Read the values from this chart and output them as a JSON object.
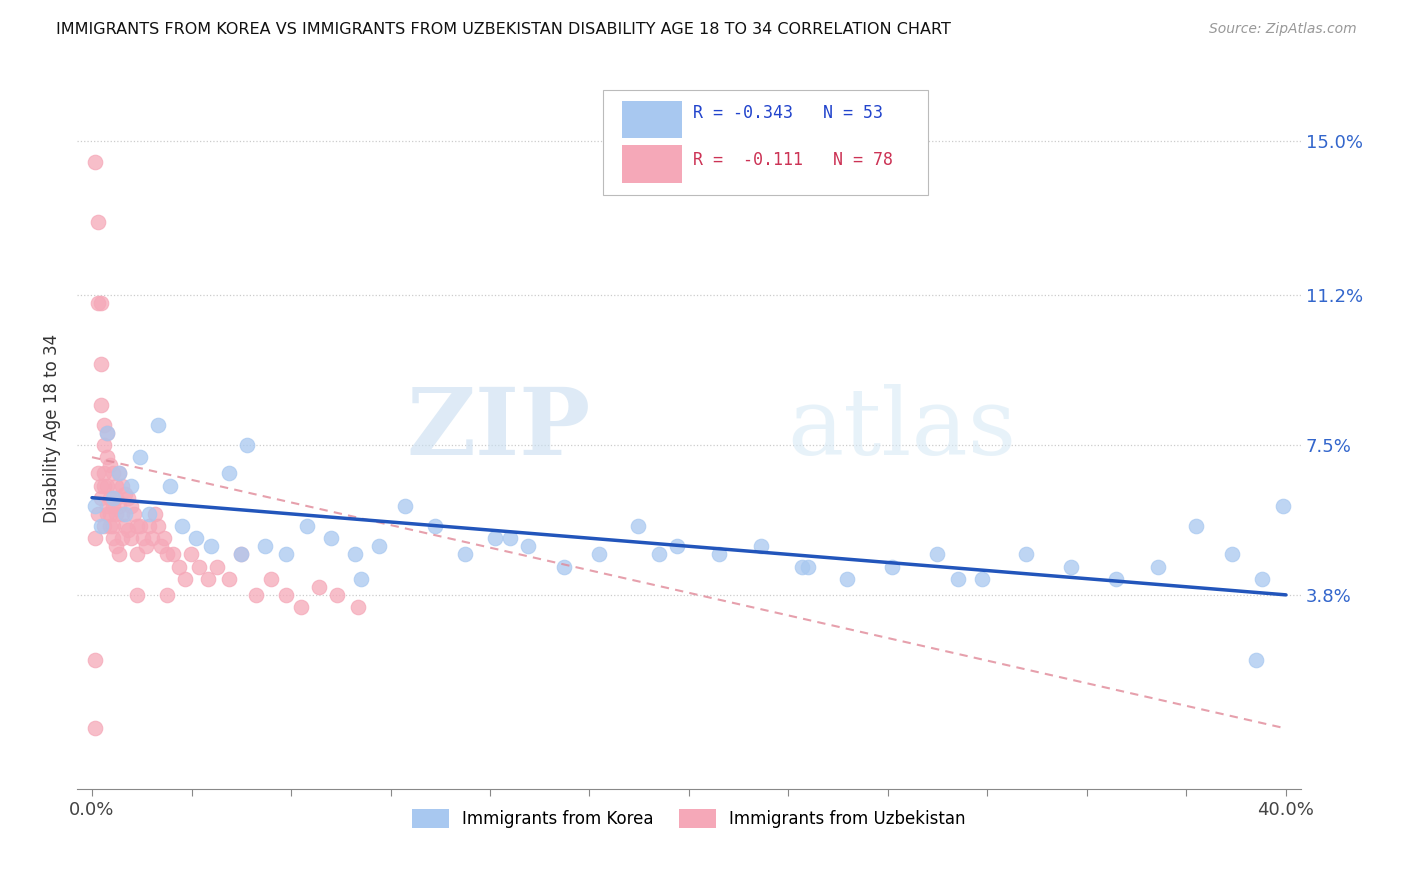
{
  "title": "IMMIGRANTS FROM KOREA VS IMMIGRANTS FROM UZBEKISTAN DISABILITY AGE 18 TO 34 CORRELATION CHART",
  "source": "Source: ZipAtlas.com",
  "ylabel": "Disability Age 18 to 34",
  "ytick_labels": [
    "15.0%",
    "11.2%",
    "7.5%",
    "3.8%"
  ],
  "ytick_values": [
    0.15,
    0.112,
    0.075,
    0.038
  ],
  "xlim": [
    -0.005,
    0.405
  ],
  "ylim": [
    -0.01,
    0.168
  ],
  "korea_R": "-0.343",
  "korea_N": "53",
  "uzbekistan_R": "-0.111",
  "uzbekistan_N": "78",
  "korea_color": "#a8c8f0",
  "uzbekistan_color": "#f5a8b8",
  "korea_line_color": "#2255bb",
  "uzbekistan_line_color": "#e08898",
  "watermark_zip": "ZIP",
  "watermark_atlas": "atlas",
  "korea_points_x": [
    0.001,
    0.003,
    0.005,
    0.007,
    0.009,
    0.011,
    0.013,
    0.016,
    0.019,
    0.022,
    0.026,
    0.03,
    0.035,
    0.04,
    0.046,
    0.052,
    0.058,
    0.065,
    0.072,
    0.08,
    0.088,
    0.096,
    0.105,
    0.115,
    0.125,
    0.135,
    0.146,
    0.158,
    0.17,
    0.183,
    0.196,
    0.21,
    0.224,
    0.238,
    0.253,
    0.268,
    0.283,
    0.298,
    0.313,
    0.328,
    0.343,
    0.357,
    0.37,
    0.382,
    0.392,
    0.399,
    0.05,
    0.09,
    0.14,
    0.19,
    0.24,
    0.29,
    0.39
  ],
  "korea_points_y": [
    0.06,
    0.055,
    0.078,
    0.062,
    0.068,
    0.058,
    0.065,
    0.072,
    0.058,
    0.08,
    0.065,
    0.055,
    0.052,
    0.05,
    0.068,
    0.075,
    0.05,
    0.048,
    0.055,
    0.052,
    0.048,
    0.05,
    0.06,
    0.055,
    0.048,
    0.052,
    0.05,
    0.045,
    0.048,
    0.055,
    0.05,
    0.048,
    0.05,
    0.045,
    0.042,
    0.045,
    0.048,
    0.042,
    0.048,
    0.045,
    0.042,
    0.045,
    0.055,
    0.048,
    0.042,
    0.06,
    0.048,
    0.042,
    0.052,
    0.048,
    0.045,
    0.042,
    0.022
  ],
  "uzbekistan_points_x": [
    0.001,
    0.001,
    0.001,
    0.002,
    0.002,
    0.002,
    0.003,
    0.003,
    0.003,
    0.003,
    0.004,
    0.004,
    0.004,
    0.004,
    0.005,
    0.005,
    0.005,
    0.005,
    0.006,
    0.006,
    0.006,
    0.007,
    0.007,
    0.007,
    0.008,
    0.008,
    0.008,
    0.009,
    0.009,
    0.01,
    0.01,
    0.011,
    0.011,
    0.012,
    0.012,
    0.013,
    0.013,
    0.014,
    0.015,
    0.015,
    0.016,
    0.017,
    0.018,
    0.019,
    0.02,
    0.021,
    0.022,
    0.023,
    0.024,
    0.025,
    0.027,
    0.029,
    0.031,
    0.033,
    0.036,
    0.039,
    0.042,
    0.046,
    0.05,
    0.055,
    0.06,
    0.065,
    0.07,
    0.076,
    0.082,
    0.089,
    0.001,
    0.002,
    0.003,
    0.004,
    0.005,
    0.006,
    0.007,
    0.008,
    0.009,
    0.01,
    0.015,
    0.025
  ],
  "uzbekistan_points_y": [
    0.145,
    0.022,
    0.005,
    0.13,
    0.11,
    0.068,
    0.11,
    0.095,
    0.085,
    0.065,
    0.08,
    0.075,
    0.068,
    0.055,
    0.078,
    0.072,
    0.065,
    0.058,
    0.07,
    0.062,
    0.055,
    0.068,
    0.06,
    0.052,
    0.065,
    0.058,
    0.05,
    0.068,
    0.06,
    0.065,
    0.058,
    0.063,
    0.055,
    0.062,
    0.054,
    0.06,
    0.052,
    0.058,
    0.055,
    0.048,
    0.055,
    0.052,
    0.05,
    0.055,
    0.052,
    0.058,
    0.055,
    0.05,
    0.052,
    0.048,
    0.048,
    0.045,
    0.042,
    0.048,
    0.045,
    0.042,
    0.045,
    0.042,
    0.048,
    0.038,
    0.042,
    0.038,
    0.035,
    0.04,
    0.038,
    0.035,
    0.052,
    0.058,
    0.062,
    0.065,
    0.06,
    0.058,
    0.055,
    0.062,
    0.048,
    0.052,
    0.038,
    0.038
  ]
}
